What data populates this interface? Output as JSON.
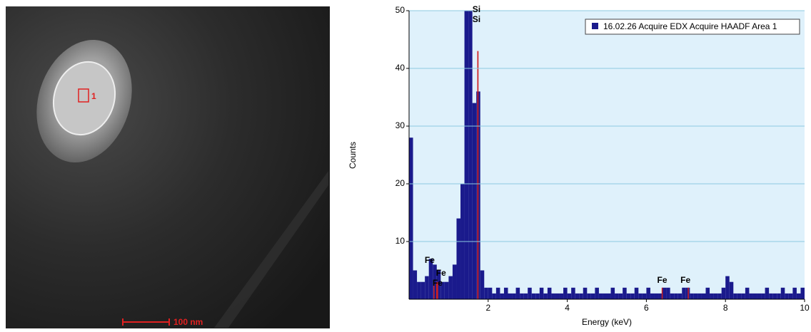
{
  "image": {
    "region_label": "1",
    "scale_bar": "100 nm"
  },
  "chart_data": {
    "type": "histogram",
    "xlabel": "Energy (keV)",
    "ylabel": "Counts",
    "xlim": [
      0,
      10
    ],
    "ylim": [
      0,
      50
    ],
    "xticks": [
      2,
      4,
      6,
      8,
      10
    ],
    "yticks": [
      10,
      20,
      30,
      40,
      50
    ],
    "grid": true,
    "legend": "top-right",
    "bins": [
      0,
      0.1,
      0.2,
      0.3,
      0.4,
      0.5,
      0.6,
      0.7,
      0.8,
      0.9,
      1,
      1.1,
      1.2,
      1.3,
      1.4,
      1.5,
      1.6,
      1.7,
      1.8,
      1.9,
      2,
      2.1,
      2.2,
      2.3,
      2.4,
      2.5,
      2.6,
      2.7,
      2.8,
      2.9,
      3,
      3.1,
      3.2,
      3.3,
      3.4,
      3.5,
      3.6,
      3.7,
      3.8,
      3.9,
      4,
      4.1,
      4.2,
      4.3,
      4.4,
      4.5,
      4.6,
      4.7,
      4.8,
      4.9,
      5,
      5.1,
      5.2,
      5.3,
      5.4,
      5.5,
      5.6,
      5.7,
      5.8,
      5.9,
      6,
      6.1,
      6.2,
      6.3,
      6.4,
      6.5,
      6.6,
      6.7,
      6.8,
      6.9,
      7,
      7.1,
      7.2,
      7.3,
      7.4,
      7.5,
      7.6,
      7.7,
      7.8,
      7.9,
      8,
      8.1,
      8.2,
      8.3,
      8.4,
      8.5,
      8.6,
      8.7,
      8.8,
      8.9,
      9,
      9.1,
      9.2,
      9.3,
      9.4,
      9.5,
      9.6,
      9.7,
      9.8,
      9.9,
      10
    ],
    "series": [
      {
        "name": "16.02.26 Acquire EDX Acquire HAADF Area 1",
        "color": "#1a1a8c",
        "values": [
          28,
          5,
          3,
          3,
          4,
          7,
          6,
          5,
          3,
          3,
          4,
          6,
          14,
          20,
          50,
          50,
          34,
          36,
          5,
          2,
          2,
          1,
          2,
          1,
          2,
          1,
          1,
          2,
          1,
          1,
          2,
          1,
          1,
          2,
          1,
          2,
          1,
          1,
          1,
          2,
          1,
          2,
          1,
          1,
          2,
          1,
          1,
          2,
          1,
          1,
          1,
          2,
          1,
          1,
          2,
          1,
          1,
          2,
          1,
          1,
          2,
          1,
          1,
          1,
          2,
          2,
          1,
          1,
          1,
          2,
          2,
          1,
          1,
          1,
          1,
          2,
          1,
          1,
          1,
          2,
          4,
          3,
          1,
          1,
          1,
          2,
          1,
          1,
          1,
          1,
          2,
          1,
          1,
          1,
          2,
          1,
          1,
          2,
          1,
          2
        ]
      }
    ],
    "markers": [
      {
        "label": "Fe",
        "energy": 0.63,
        "height": 3
      },
      {
        "label": "Fe",
        "energy": 0.7,
        "height": 3
      },
      {
        "label": "Fe",
        "energy": 0.72,
        "height": 3
      },
      {
        "label": "Si",
        "energy": 1.74,
        "height": 43
      },
      {
        "label": "Si",
        "energy": 1.74,
        "height": 43
      },
      {
        "label": "Fe",
        "energy": 6.4,
        "height": 2
      },
      {
        "label": "Fe",
        "energy": 7.06,
        "height": 2
      }
    ]
  }
}
